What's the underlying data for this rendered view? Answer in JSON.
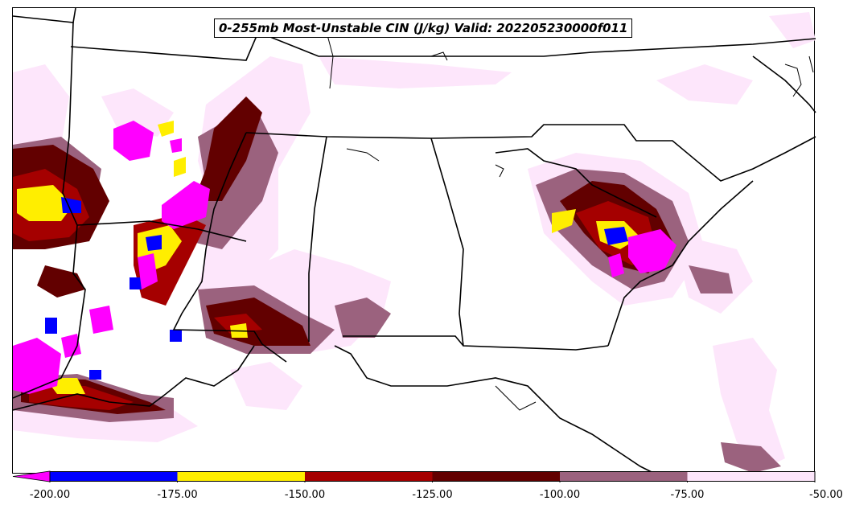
{
  "title": "0-255mb Most-Unstable CIN (J/kg) Valid: 202205230000f011",
  "colorbar": {
    "bins": [
      {
        "from": -200,
        "to": -175,
        "color": "#0000ff"
      },
      {
        "from": -175,
        "to": -150,
        "color": "#ffee00"
      },
      {
        "from": -150,
        "to": -125,
        "color": "#a50000"
      },
      {
        "from": -125,
        "to": -100,
        "color": "#620000"
      },
      {
        "from": -100,
        "to": -75,
        "color": "#9b627e"
      },
      {
        "from": -75,
        "to": -50,
        "color": "#fde6fb"
      }
    ],
    "under_color": "#ff00ff",
    "tick_labels": [
      "-200.00",
      "-175.00",
      "-150.00",
      "-125.00",
      "-100.00",
      "-75.00",
      "-50.00"
    ]
  }
}
